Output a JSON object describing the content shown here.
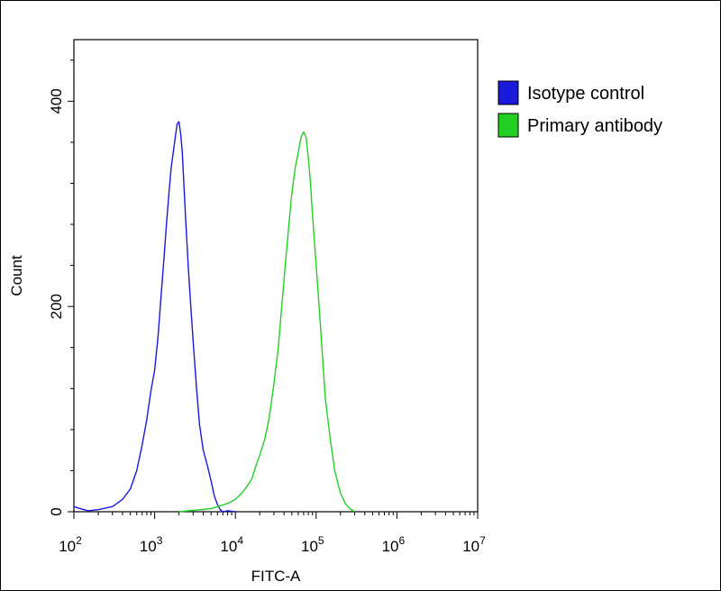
{
  "chart_data": {
    "type": "line",
    "title": "",
    "xlabel": "FITC-A",
    "ylabel": "Count",
    "x_scale": "log10",
    "xlim": [
      100,
      10000000
    ],
    "ylim": [
      0,
      460
    ],
    "x_ticks": [
      {
        "value": 100,
        "base": "10",
        "exp": "2"
      },
      {
        "value": 1000,
        "base": "10",
        "exp": "3"
      },
      {
        "value": 10000,
        "base": "10",
        "exp": "4"
      },
      {
        "value": 100000,
        "base": "10",
        "exp": "5"
      },
      {
        "value": 1000000,
        "base": "10",
        "exp": "6"
      },
      {
        "value": 10000000,
        "base": "10",
        "exp": "7"
      }
    ],
    "y_ticks": [
      {
        "value": 0,
        "label": "0"
      },
      {
        "value": 200,
        "label": "200"
      },
      {
        "value": 400,
        "label": "400"
      }
    ],
    "legend_position": "right",
    "grid": false,
    "series": [
      {
        "name": "Isotype control",
        "color": "#1a1adc",
        "x": [
          100,
          120,
          150,
          200,
          300,
          400,
          500,
          600,
          700,
          800,
          900,
          1000,
          1100,
          1200,
          1300,
          1400,
          1500,
          1600,
          1700,
          1800,
          1900,
          2000,
          2100,
          2200,
          2300,
          2400,
          2600,
          2800,
          3000,
          3300,
          3600,
          4000,
          4500,
          5000,
          5500,
          6000,
          6500,
          7000,
          8000,
          10000
        ],
        "y": [
          5,
          3,
          1,
          2,
          5,
          12,
          22,
          40,
          65,
          90,
          118,
          138,
          170,
          210,
          245,
          280,
          310,
          335,
          350,
          365,
          378,
          380,
          368,
          350,
          320,
          290,
          240,
          200,
          165,
          120,
          85,
          60,
          45,
          30,
          15,
          7,
          2,
          0,
          1,
          0
        ]
      },
      {
        "name": "Primary antibody",
        "color": "#22d022",
        "x": [
          2000,
          5000,
          8000,
          10000,
          12000,
          14000,
          16000,
          18000,
          20000,
          23000,
          26000,
          30000,
          34000,
          38000,
          42000,
          46000,
          50000,
          55000,
          60000,
          65000,
          70000,
          75000,
          80000,
          85000,
          90000,
          100000,
          110000,
          120000,
          130000,
          150000,
          170000,
          200000,
          230000,
          260000,
          300000
        ],
        "y": [
          0,
          3,
          8,
          12,
          18,
          25,
          32,
          45,
          55,
          70,
          90,
          125,
          160,
          205,
          245,
          280,
          310,
          335,
          350,
          365,
          370,
          365,
          345,
          320,
          290,
          240,
          195,
          150,
          110,
          70,
          40,
          18,
          8,
          3,
          0
        ]
      }
    ]
  }
}
